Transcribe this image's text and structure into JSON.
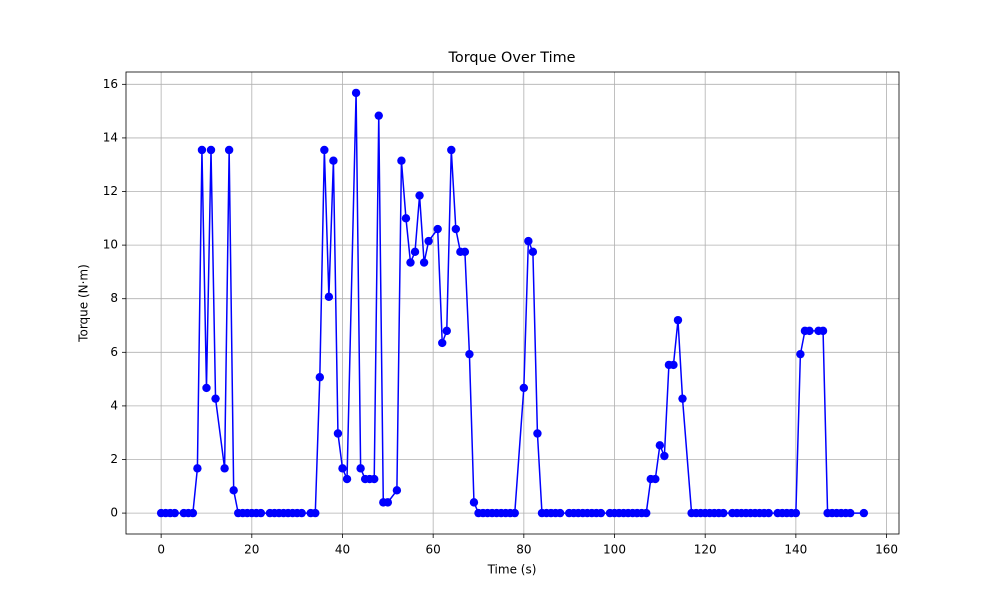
{
  "chart_data": {
    "type": "line",
    "title": "Torque Over Time",
    "x_label": "Time (s)",
    "y_label": "Torque (N·m)",
    "x": [
      0,
      1,
      2,
      3,
      5,
      6,
      7,
      8,
      9,
      10,
      11,
      12,
      14,
      15,
      16,
      17,
      18,
      19,
      20,
      21,
      22,
      24,
      25,
      26,
      27,
      28,
      29,
      30,
      31,
      33,
      34,
      35,
      36,
      37,
      38,
      39,
      40,
      41,
      43,
      44,
      45,
      46,
      47,
      48,
      49,
      50,
      52,
      53,
      54,
      55,
      56,
      57,
      58,
      59,
      61,
      62,
      63,
      64,
      65,
      66,
      67,
      68,
      69,
      70,
      71,
      72,
      73,
      74,
      75,
      76,
      77,
      78,
      80,
      81,
      82,
      83,
      84,
      85,
      86,
      87,
      88,
      90,
      91,
      92,
      93,
      94,
      95,
      96,
      97,
      99,
      100,
      101,
      102,
      103,
      104,
      105,
      106,
      107,
      108,
      109,
      110,
      111,
      112,
      113,
      114,
      115,
      117,
      118,
      119,
      120,
      121,
      122,
      123,
      124,
      126,
      127,
      128,
      129,
      130,
      131,
      132,
      133,
      134,
      136,
      137,
      138,
      139,
      140,
      141,
      142,
      143,
      145,
      146,
      147,
      148,
      149,
      150,
      151,
      152,
      155
    ],
    "series": [
      {
        "name": "Torque",
        "color": "#0000ff",
        "values": [
          0,
          0,
          0,
          0,
          0,
          0,
          0,
          1.67,
          13.55,
          4.67,
          13.55,
          4.27,
          1.67,
          13.55,
          0.85,
          0,
          0,
          0,
          0,
          0,
          0,
          0,
          0,
          0,
          0,
          0,
          0,
          0,
          0,
          0,
          0,
          5.07,
          13.55,
          8.07,
          13.15,
          2.97,
          1.67,
          1.27,
          15.68,
          1.67,
          1.27,
          1.27,
          1.27,
          14.83,
          0.4,
          0.4,
          0.85,
          13.15,
          11.0,
          9.35,
          9.75,
          11.85,
          9.35,
          10.15,
          10.6,
          6.35,
          6.8,
          13.55,
          10.6,
          9.75,
          9.75,
          5.93,
          0.4,
          0,
          0,
          0,
          0,
          0,
          0,
          0,
          0,
          0,
          4.67,
          10.15,
          9.75,
          2.97,
          0,
          0,
          0,
          0,
          0,
          0,
          0,
          0,
          0,
          0,
          0,
          0,
          0,
          0,
          0,
          0,
          0,
          0,
          0,
          0,
          0,
          0,
          1.27,
          1.27,
          2.53,
          2.13,
          5.53,
          5.53,
          7.2,
          4.27,
          0,
          0,
          0,
          0,
          0,
          0,
          0,
          0,
          0,
          0,
          0,
          0,
          0,
          0,
          0,
          0,
          0,
          0,
          0,
          0,
          0,
          0,
          5.93,
          6.8,
          6.8,
          6.8,
          6.8,
          0,
          0,
          0,
          0,
          0,
          0,
          0
        ]
      }
    ],
    "xlim": [
      -7.75,
      162.75
    ],
    "ylim": [
      -0.78,
      16.46
    ],
    "xticks": [
      0,
      20,
      40,
      60,
      80,
      100,
      120,
      140,
      160
    ],
    "yticks": [
      0,
      2,
      4,
      6,
      8,
      10,
      12,
      14,
      16
    ],
    "grid": true
  }
}
